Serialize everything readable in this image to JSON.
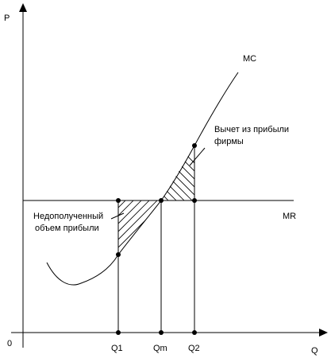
{
  "axes": {
    "y_label": "P",
    "x_label": "Q",
    "origin_label": "0"
  },
  "curves": {
    "mc_label": "MC",
    "mr_label": "MR"
  },
  "quantities": {
    "q1": "Q1",
    "qm": "Qm",
    "q2": "Q2"
  },
  "annotations": {
    "loss_line1": "Недополученный",
    "loss_line2": "объем прибыли",
    "deduction_line1": "Вычет из прибыли",
    "deduction_line2": "фирмы"
  },
  "colors": {
    "line": "#000000",
    "background": "#ffffff"
  }
}
